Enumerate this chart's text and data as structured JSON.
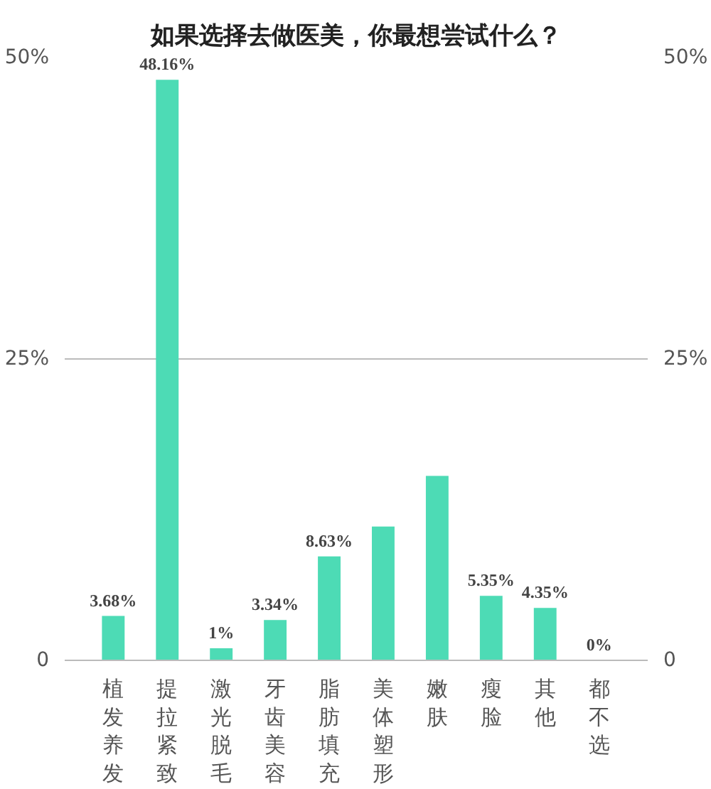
{
  "chart_data": {
    "type": "bar",
    "title": "如果选择去做医美，你最想尝试什么？",
    "categories": [
      "植发养发",
      "提拉紧致",
      "激光脱毛",
      "牙齿美容",
      "脂肪填充",
      "美体塑形",
      "嫩肤",
      "瘦脸",
      "其他",
      "都不选"
    ],
    "values": [
      3.68,
      48.16,
      1,
      3.34,
      8.63,
      11.1,
      15.3,
      5.35,
      4.35,
      0
    ],
    "value_labels": [
      "3.68%",
      "48.16%",
      "1%",
      "3.34%",
      "8.63%",
      null,
      null,
      "5.35%",
      "4.35%",
      "0%"
    ],
    "color": "#4ddbb5",
    "ylim": [
      0,
      50
    ],
    "yticks": [
      0,
      {
        "value": 25,
        "label": "25%"
      },
      {
        "value": 50,
        "label": "50%"
      }
    ],
    "y2lim": [
      0,
      50
    ],
    "y2ticks": [
      0,
      {
        "value": 25,
        "label": "25%"
      },
      {
        "value": 50,
        "label": "50%"
      }
    ],
    "grid": "y"
  }
}
